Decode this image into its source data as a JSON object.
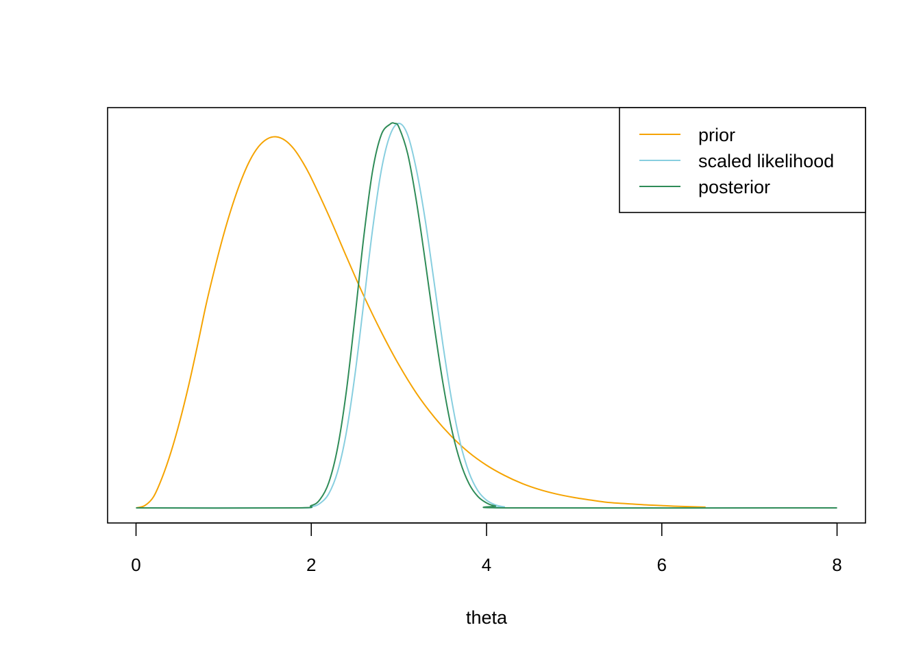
{
  "chart_data": {
    "type": "line",
    "title": "",
    "xlabel": "theta",
    "ylabel": "",
    "xlim": [
      0,
      8
    ],
    "ylim": [
      0,
      1
    ],
    "x_ticks": [
      "0",
      "2",
      "4",
      "6",
      "8"
    ],
    "y_axis_shown": false,
    "grid": false,
    "legend_position": "top-right",
    "series": [
      {
        "name": "prior",
        "color": "#F5A300",
        "x": [
          0,
          0.1,
          0.2,
          0.3,
          0.4,
          0.5,
          0.6,
          0.7,
          0.8,
          0.9,
          1.0,
          1.1,
          1.2,
          1.3,
          1.4,
          1.5,
          1.6,
          1.7,
          1.8,
          1.9,
          2.0,
          2.2,
          2.4,
          2.6,
          2.8,
          3.0,
          3.2,
          3.4,
          3.6,
          3.8,
          4.0,
          4.2,
          4.4,
          4.6,
          4.8,
          5.0,
          5.2,
          5.4,
          5.6,
          5.8,
          6.0,
          6.2,
          6.5
        ],
        "values": [
          0,
          0.006,
          0.029,
          0.08,
          0.146,
          0.226,
          0.318,
          0.421,
          0.529,
          0.624,
          0.711,
          0.787,
          0.852,
          0.904,
          0.94,
          0.96,
          0.965,
          0.956,
          0.934,
          0.9,
          0.858,
          0.76,
          0.654,
          0.551,
          0.457,
          0.372,
          0.298,
          0.237,
          0.186,
          0.144,
          0.111,
          0.085,
          0.064,
          0.048,
          0.036,
          0.027,
          0.02,
          0.014,
          0.011,
          0.008,
          0.006,
          0.004,
          0.002
        ]
      },
      {
        "name": "scaled likelihood",
        "color": "#87CEDF",
        "x": [
          0,
          1.8,
          2.0,
          2.1,
          2.2,
          2.3,
          2.4,
          2.5,
          2.6,
          2.7,
          2.8,
          2.9,
          3.0,
          3.1,
          3.2,
          3.3,
          3.4,
          3.5,
          3.6,
          3.7,
          3.8,
          3.9,
          4.0,
          4.1,
          4.2,
          4.4,
          8.0
        ],
        "values": [
          0,
          0,
          0.003,
          0.012,
          0.037,
          0.094,
          0.196,
          0.349,
          0.536,
          0.725,
          0.879,
          0.97,
          1.0,
          0.97,
          0.879,
          0.749,
          0.59,
          0.428,
          0.283,
          0.169,
          0.092,
          0.045,
          0.02,
          0.008,
          0.003,
          0,
          0
        ]
      },
      {
        "name": "posterior",
        "color": "#2E8B57",
        "x": [
          0,
          1.8,
          2.0,
          2.1,
          2.2,
          2.3,
          2.4,
          2.5,
          2.6,
          2.7,
          2.8,
          2.9,
          2.95,
          3.0,
          3.1,
          3.2,
          3.3,
          3.4,
          3.5,
          3.6,
          3.7,
          3.8,
          3.9,
          4.0,
          4.1,
          4.3,
          8.0
        ],
        "values": [
          0,
          0,
          0.006,
          0.022,
          0.066,
          0.156,
          0.303,
          0.499,
          0.707,
          0.877,
          0.971,
          0.998,
          1.0,
          0.99,
          0.921,
          0.797,
          0.642,
          0.478,
          0.328,
          0.207,
          0.12,
          0.063,
          0.03,
          0.013,
          0.005,
          0,
          0
        ]
      }
    ]
  }
}
